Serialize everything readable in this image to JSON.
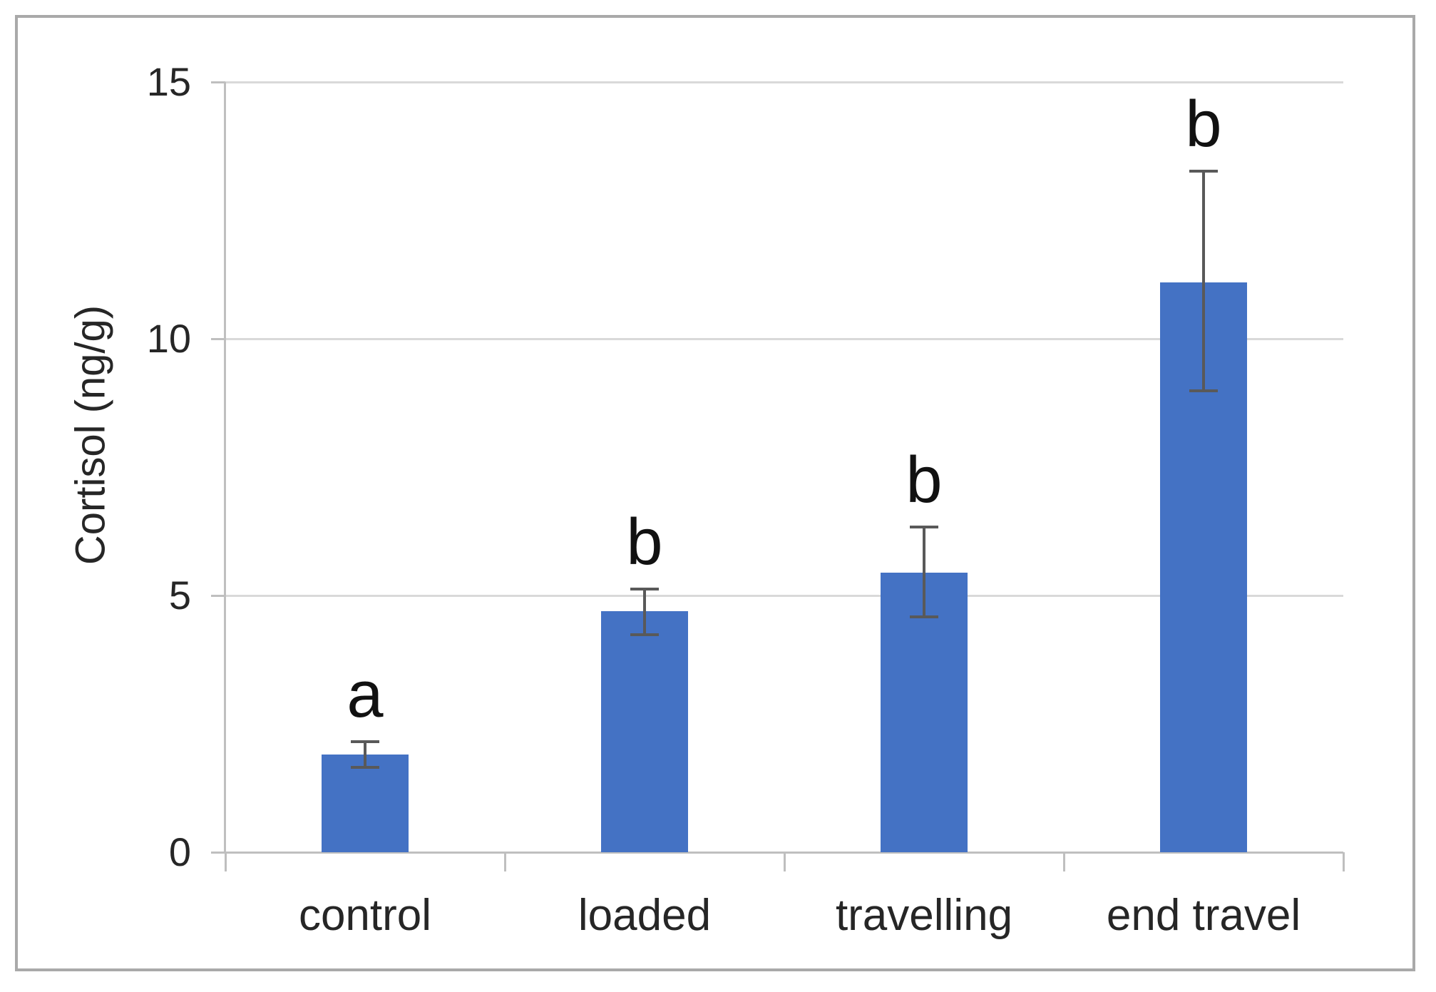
{
  "chart_data": {
    "type": "bar",
    "title": "",
    "xlabel": "",
    "ylabel": "Cortisol (ng/g)",
    "ylim": [
      0,
      15
    ],
    "yticks": [
      0,
      5,
      10,
      15
    ],
    "grid": true,
    "legend": false,
    "categories": [
      "control",
      "loaded",
      "travelling",
      "end travel"
    ],
    "values": [
      1.9,
      4.7,
      5.45,
      11.1
    ],
    "error_up": [
      0.25,
      0.42,
      0.88,
      2.16
    ],
    "error_down": [
      0.25,
      0.47,
      0.86,
      2.11
    ],
    "sig_letters": [
      "a",
      "b",
      "b",
      "b"
    ],
    "colors": {
      "bar": "#4472c4",
      "error_bar": "#595959",
      "gridline": "#d9d9d9",
      "axis_line": "#bfbfbf",
      "frame_border": "#a9a9a9",
      "text": "#262626"
    }
  }
}
